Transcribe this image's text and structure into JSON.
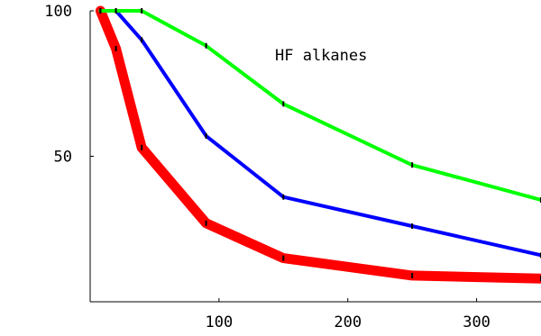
{
  "chart_data": {
    "type": "line",
    "title": "HF alkanes",
    "xlabel": "",
    "ylabel": "",
    "xlim": [
      0,
      350
    ],
    "ylim": [
      0,
      100
    ],
    "x_ticks": [
      100,
      200,
      300
    ],
    "y_ticks": [
      50,
      100
    ],
    "grid": false,
    "series": [
      {
        "color": "#ff0000",
        "line_width": "thick",
        "x": [
          8,
          20,
          40,
          90,
          150,
          250,
          350
        ],
        "y": [
          100,
          87,
          53,
          27,
          15,
          9,
          8
        ]
      },
      {
        "color": "#0000ff",
        "line_width": "medium",
        "x": [
          8,
          20,
          40,
          90,
          150,
          250,
          350
        ],
        "y": [
          100,
          100,
          90,
          57,
          36,
          26,
          16
        ]
      },
      {
        "color": "#00ff00",
        "line_width": "medium",
        "x": [
          8,
          20,
          40,
          90,
          150,
          250,
          350
        ],
        "y": [
          100,
          100,
          100,
          88,
          68,
          47,
          35
        ]
      }
    ]
  }
}
